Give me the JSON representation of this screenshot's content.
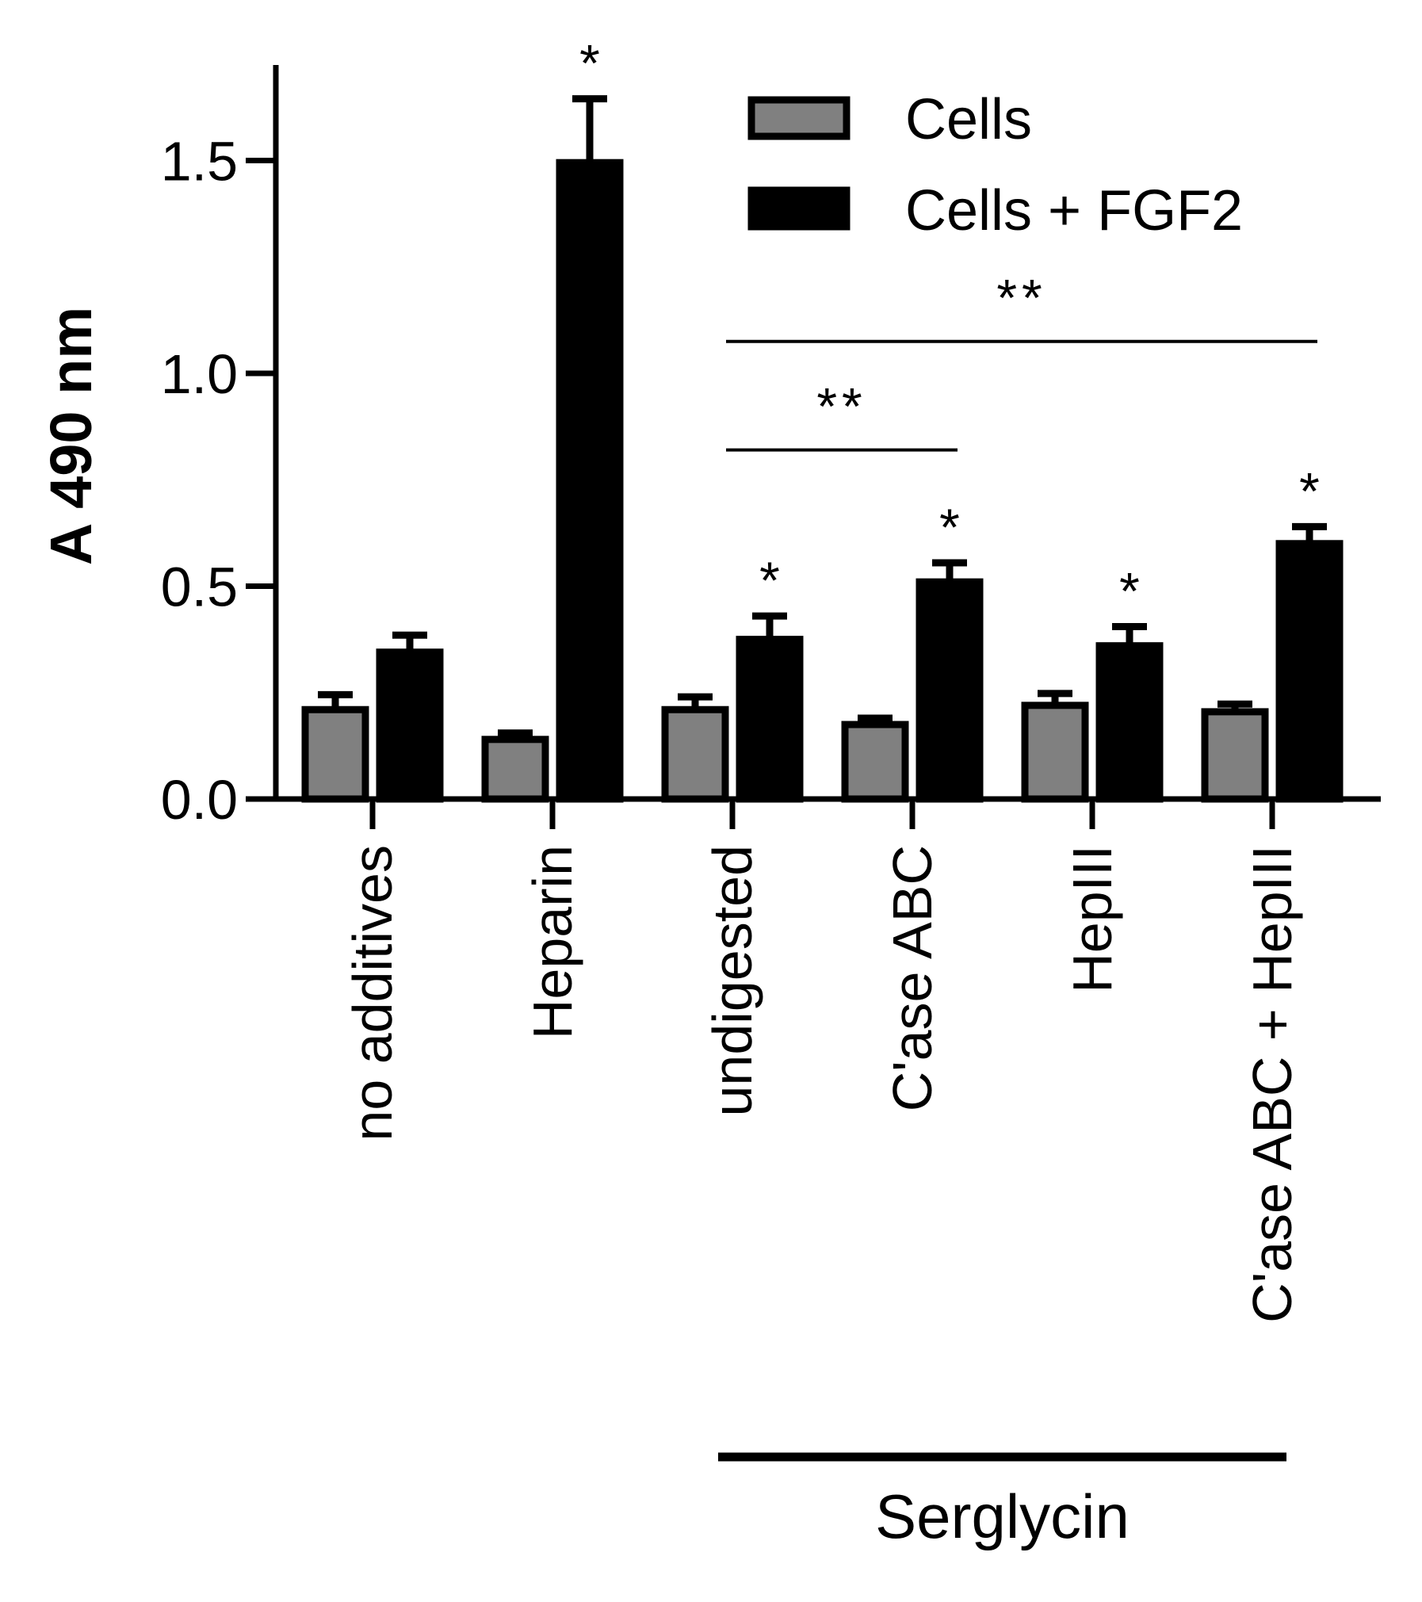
{
  "chart_data": {
    "type": "bar",
    "title": "",
    "xlabel": "",
    "ylabel": "A 490 nm",
    "ylim": [
      0,
      1.7
    ],
    "yticks": [
      "0.0",
      "0.5",
      "1.0",
      "1.5"
    ],
    "ytick_values": [
      0,
      0.5,
      1.0,
      1.5
    ],
    "grid": false,
    "legend_position": "top-right",
    "categories": [
      "no additives",
      "Heparin",
      "undigested",
      "C'ase ABC",
      "HepIII",
      "C'ase ABC + HepIII"
    ],
    "series": [
      {
        "name": "Cells",
        "color": "#808080",
        "values": [
          0.21,
          0.14,
          0.21,
          0.175,
          0.22,
          0.205
        ],
        "errors": [
          0.035,
          0.015,
          0.03,
          0.015,
          0.028,
          0.018
        ]
      },
      {
        "name": "Cells + FGF2",
        "color": "#000000",
        "values": [
          0.345,
          1.495,
          0.375,
          0.51,
          0.36,
          0.6
        ],
        "errors": [
          0.04,
          0.15,
          0.055,
          0.045,
          0.045,
          0.04
        ]
      }
    ],
    "significance_marks": [
      {
        "category_index": 1,
        "series_index": 1,
        "label": "*"
      },
      {
        "category_index": 2,
        "series_index": 1,
        "label": "*"
      },
      {
        "category_index": 3,
        "series_index": 1,
        "label": "*"
      },
      {
        "category_index": 4,
        "series_index": 1,
        "label": "*"
      },
      {
        "category_index": 5,
        "series_index": 1,
        "label": "*"
      }
    ],
    "comparison_brackets": [
      {
        "from_category": 2,
        "to_category": 3,
        "label": "**",
        "y": 0.82
      },
      {
        "from_category": 2,
        "to_category": 5,
        "label": "**",
        "y": 1.075
      }
    ],
    "group_annotation": {
      "label": "Serglycin",
      "from_category": 2,
      "to_category": 5
    }
  }
}
